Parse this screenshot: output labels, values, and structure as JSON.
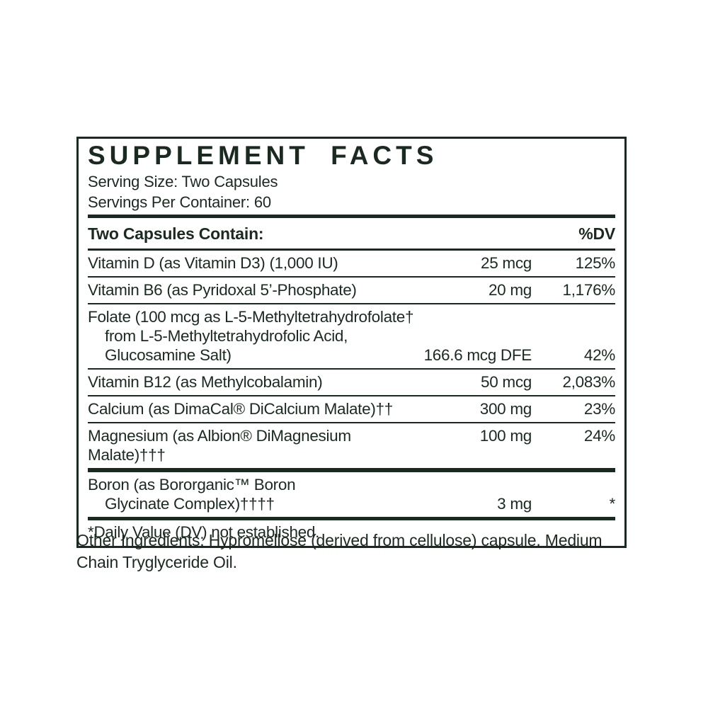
{
  "colors": {
    "ink": "#1b2a21",
    "background": "#ffffff"
  },
  "supplement_facts": {
    "title": "SUPPLEMENT FACTS",
    "serving_size": "Serving Size: Two Capsules",
    "servings_per_container": "Servings Per Container: 60",
    "columns": {
      "left": "Two Capsules Contain:",
      "right": "%DV"
    },
    "rows": [
      {
        "lines": [
          "Vitamin D (as Vitamin D3) (1,000 IU)"
        ],
        "amount": "25 mcg",
        "dv": "125%"
      },
      {
        "lines": [
          "Vitamin B6 (as Pyridoxal 5’-Phosphate)"
        ],
        "amount": "20 mg",
        "dv": "1,176%"
      },
      {
        "lines": [
          "Folate (100 mcg as L-5-Methyltetrahydrofolate†",
          "from L-5-Methyltetrahydrofolic Acid,",
          "Glucosamine Salt)"
        ],
        "amount": "166.6 mcg DFE",
        "dv": "42%"
      },
      {
        "lines": [
          "Vitamin B12 (as Methylcobalamin)"
        ],
        "amount": "50 mcg",
        "dv": "2,083%"
      },
      {
        "lines": [
          "Calcium (as DimaCal® DiCalcium Malate)††"
        ],
        "amount": "300 mg",
        "dv": "23%"
      },
      {
        "lines": [
          "Magnesium (as Albion® DiMagnesium Malate)†††"
        ],
        "amount": "100 mg",
        "dv": "24%"
      },
      {
        "lines": [
          "Boron (as Bororganic™ Boron",
          "Glycinate Complex)††††"
        ],
        "amount": "3 mg",
        "dv": "*"
      }
    ],
    "footnote": "*Daily Value (DV) not established.",
    "other_ingredients": "Other Ingredients: Hypromellose (derived from cellulose) capsule, Medium Chain Tryglyceride Oil."
  }
}
